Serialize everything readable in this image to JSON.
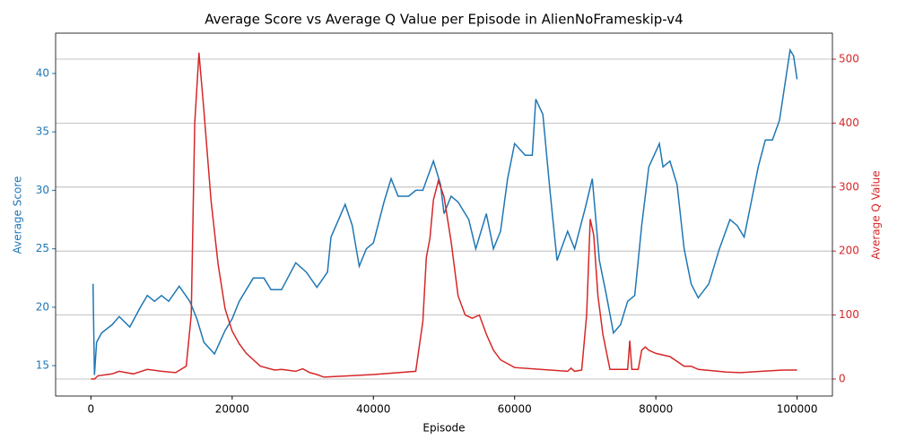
{
  "chart_data": {
    "type": "line",
    "title": "Average Score vs Average Q Value per Episode in AlienNoFrameskip-v4",
    "x_label": "Episode",
    "y_label": "Average Score",
    "y2_label": "Average Q Value",
    "xlim": [
      -5000,
      105000
    ],
    "xticks": [
      0,
      20000,
      40000,
      60000,
      80000,
      100000
    ],
    "ylim": [
      12.4,
      43.45
    ],
    "yticks": [
      15,
      20,
      25,
      30,
      35,
      40
    ],
    "y2lim": [
      -26.6,
      540.6
    ],
    "y2ticks": [
      0,
      100,
      200,
      300,
      400,
      500
    ],
    "grid": "y2",
    "series": [
      {
        "name": "Average Score",
        "color": "#1f77b4",
        "x": [
          300,
          500,
          800,
          1500,
          3000,
          4000,
          5500,
          7000,
          8000,
          9000,
          10000,
          11000,
          12500,
          14000,
          15000,
          16000,
          17500,
          19000,
          20000,
          21000,
          23000,
          24500,
          25500,
          27000,
          29000,
          30500,
          32000,
          33500,
          34000,
          36000,
          37000,
          38000,
          39000,
          40000,
          41500,
          42500,
          43500,
          45000,
          46000,
          47000,
          48500,
          49500,
          50000,
          51000,
          52000,
          53500,
          54500,
          56000,
          57000,
          58000,
          59000,
          60000,
          61500,
          62500,
          63000,
          64000,
          65000,
          66000,
          67500,
          68500,
          70000,
          71000,
          72000,
          73000,
          74000,
          75000,
          76000,
          77000,
          78000,
          79000,
          80500,
          81000,
          82000,
          83000,
          84000,
          85000,
          86000,
          87500,
          89000,
          90500,
          91500,
          92500,
          93500,
          94500,
          95500,
          96500,
          97500,
          99000,
          99500,
          100000
        ],
        "values": [
          22,
          14.2,
          17,
          17.8,
          18.5,
          19.2,
          18.3,
          20,
          21,
          20.5,
          21,
          20.5,
          21.8,
          20.5,
          19,
          17,
          16,
          18,
          19,
          20.5,
          22.5,
          22.5,
          21.5,
          21.5,
          23.8,
          23,
          21.7,
          23,
          26,
          28.8,
          27,
          23.5,
          25,
          25.5,
          29,
          31,
          29.5,
          29.5,
          30,
          30,
          32.5,
          30.5,
          28,
          29.5,
          29,
          27.5,
          25,
          28,
          25,
          26.5,
          31,
          34,
          33,
          33,
          37.8,
          36.5,
          30,
          24,
          26.5,
          25,
          28.5,
          31,
          24,
          21,
          17.8,
          18.5,
          20.5,
          21,
          27,
          32,
          34,
          32,
          32.5,
          30.5,
          25,
          22,
          20.8,
          22,
          25,
          27.5,
          27,
          26,
          29,
          32,
          34.3,
          34.3,
          36,
          42,
          41.5,
          39.5
        ]
      },
      {
        "name": "Average Q Value",
        "color": "#d62728",
        "axis": "y2",
        "x": [
          0,
          500,
          1000,
          3000,
          4000,
          6000,
          8000,
          10000,
          12000,
          13500,
          14200,
          14700,
          15300,
          16000,
          17000,
          18000,
          19000,
          20000,
          21000,
          22000,
          24000,
          26000,
          27000,
          29000,
          30000,
          31000,
          32000,
          33000,
          40000,
          46000,
          47000,
          47500,
          48000,
          48500,
          49200,
          50000,
          51000,
          52000,
          53000,
          54000,
          55000,
          56000,
          57000,
          58000,
          60000,
          65000,
          67500,
          68000,
          68500,
          69500,
          70200,
          70700,
          71200,
          71800,
          72500,
          73000,
          73500,
          76000,
          76300,
          76600,
          77500,
          78000,
          78500,
          79000,
          80000,
          82000,
          84000,
          85000,
          86000,
          90000,
          92000,
          95000,
          98000,
          100000
        ],
        "values": [
          0,
          0,
          5,
          8,
          12,
          8,
          15,
          12,
          10,
          20,
          100,
          400,
          510,
          420,
          280,
          180,
          110,
          75,
          55,
          40,
          20,
          14,
          15,
          12,
          16,
          10,
          7,
          3,
          7,
          12,
          90,
          190,
          220,
          280,
          310,
          285,
          215,
          130,
          100,
          95,
          100,
          70,
          45,
          30,
          18,
          14,
          12,
          17,
          12,
          14,
          100,
          250,
          225,
          130,
          70,
          42,
          15,
          15,
          60,
          15,
          15,
          45,
          50,
          45,
          40,
          35,
          20,
          20,
          15,
          11,
          10,
          12,
          14,
          14
        ]
      }
    ]
  }
}
